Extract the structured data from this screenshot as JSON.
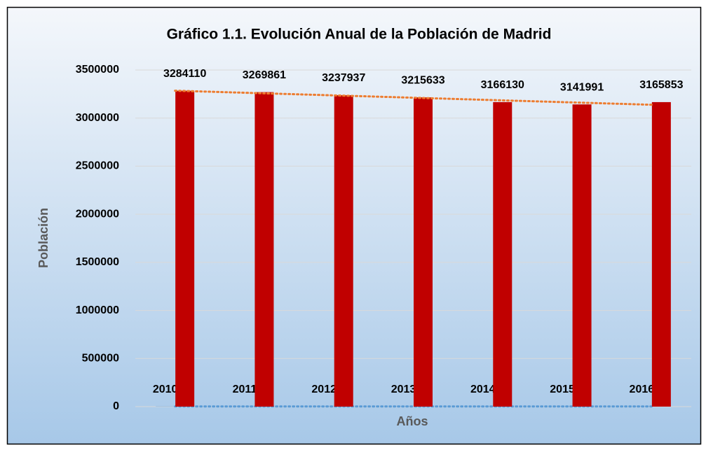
{
  "chart_data": {
    "type": "bar",
    "title": "Gráfico 1.1. Evolución Anual de la Población de Madrid",
    "xlabel": "Años",
    "ylabel": "Población",
    "categories": [
      null,
      null,
      null,
      null,
      null,
      null,
      null
    ],
    "series": [
      {
        "color": "#5b9bd5",
        "values": [
          2010,
          2011,
          2012,
          2013,
          2014,
          2015,
          2016
        ],
        "trendline": {
          "type": "linear",
          "color": "#5b9bd5"
        }
      },
      {
        "color": "#c00000",
        "values": [
          3284110,
          3269861,
          3237937,
          3215633,
          3166130,
          3141991,
          3165853
        ],
        "trendline": {
          "type": "linear",
          "color": "#ed7d31"
        }
      }
    ],
    "ylim": [
      0,
      3500000
    ],
    "yticks": [
      0,
      500000,
      1000000,
      1500000,
      2000000,
      2500000,
      3000000,
      3500000
    ],
    "grid": true
  }
}
